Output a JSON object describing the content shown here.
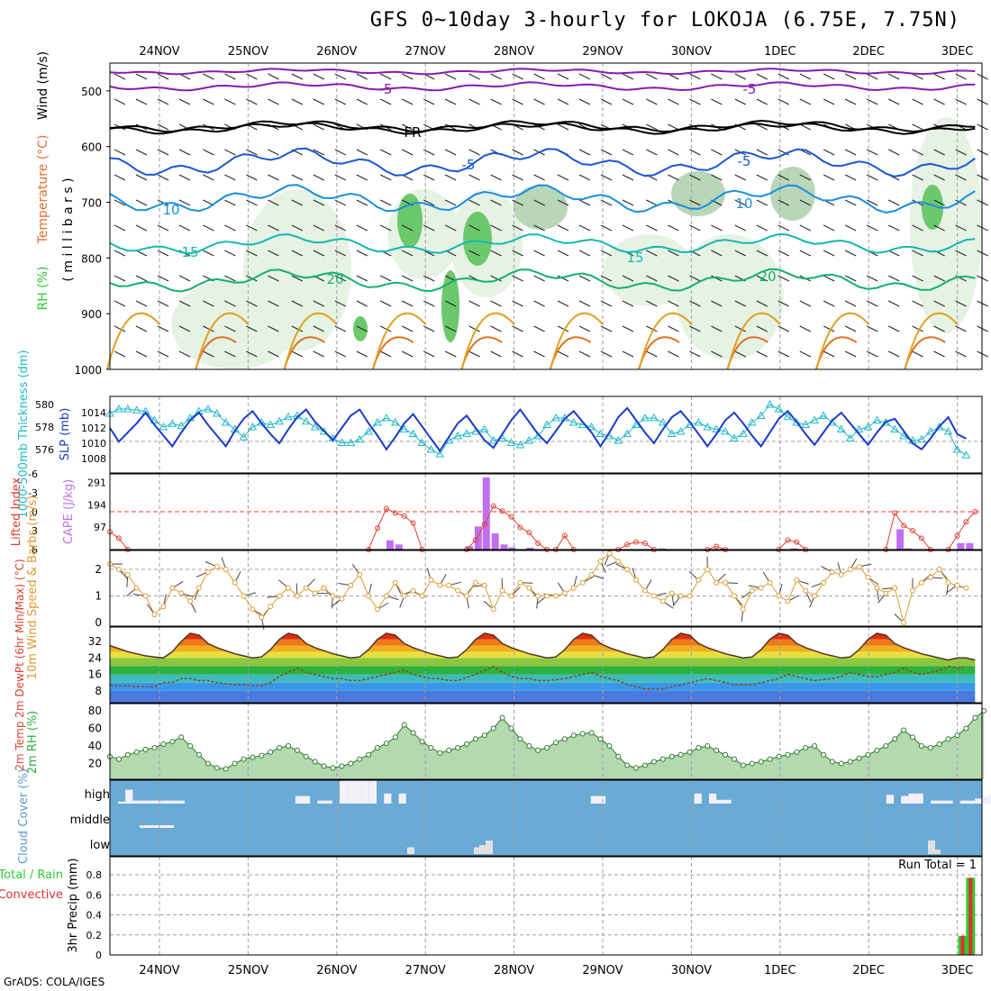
{
  "title": "GFS 0~10day 3-hourly for LOKOJA (6.75E, 7.75N)",
  "credit": "GrADS: COLA/IGES",
  "dates": [
    "24NOV",
    "25NOV",
    "26NOV",
    "27NOV",
    "28NOV",
    "29NOV",
    "30NOV",
    "1DEC",
    "2DEC",
    "3DEC"
  ],
  "colors": {
    "frame": "#000000",
    "grid": "#a0a0a0",
    "thickness": "#20b8c8",
    "slp": "#1a3cc8",
    "lifted": "#e04030",
    "cape": "#c070f0",
    "wind": "#e09a30",
    "rh": "#30b040",
    "cloud_bg": "#6aaad6",
    "cloud_box": "#f4f0f8",
    "precip_total": "#33c833",
    "precip_conv": "#e03030"
  },
  "panels": {
    "upper_air": {
      "ylabel_parts": [
        "RH (%)",
        "Temperature (°C)",
        "Wind (m/s)"
      ],
      "ylabel_unit": "( m i l l i b a r s )",
      "yticks": [
        "500",
        "600",
        "700",
        "800",
        "900",
        "1000"
      ],
      "isotherm_labels": [
        {
          "text": "-5",
          "color": "#8a1ab0"
        },
        {
          "text": "-5",
          "color": "#8a1ab0"
        },
        {
          "text": "FR",
          "color": "#000000"
        },
        {
          "text": "-5",
          "color": "#1a56d8"
        },
        {
          "text": "-5",
          "color": "#1a56d8"
        },
        {
          "text": "10",
          "color": "#1a8ee0"
        },
        {
          "text": "10",
          "color": "#1a8ee0"
        },
        {
          "text": "15",
          "color": "#14b8b0"
        },
        {
          "text": "15",
          "color": "#14b8b0"
        },
        {
          "text": "20",
          "color": "#14b070"
        },
        {
          "text": "20",
          "color": "#14b070"
        }
      ]
    },
    "thickness_slp": {
      "ylabel_left": "1000-500mb Thickness (dm)",
      "ylabel_right": "SLP (mb)",
      "yticks_left": [
        "580",
        "578",
        "576"
      ],
      "yticks_right": [
        "1014",
        "1012",
        "1010",
        "1008"
      ]
    },
    "cape_li": {
      "ylabel_left": "Lifted Index",
      "ylabel_right": "CAPE (J/kg)",
      "yticks_left": [
        "-6",
        "-3",
        "0",
        "3",
        "6"
      ],
      "yticks_right": [
        "291",
        "194",
        "97"
      ]
    },
    "wind10m": {
      "ylabel": "10m Wind Speed & Barbs (m/s)",
      "yticks": [
        "2",
        "1",
        "0"
      ]
    },
    "temp2m": {
      "ylabel": "2m Temp 2m DewPt (6hr Min/Max) (°C)",
      "yticks": [
        "32",
        "24",
        "16",
        "8"
      ]
    },
    "rh2m": {
      "ylabel": "2m RH (%)",
      "yticks": [
        "80",
        "60",
        "40",
        "20"
      ]
    },
    "cloud": {
      "ylabel": "Cloud Cover (%)",
      "levels": [
        "high",
        "middle",
        "low"
      ]
    },
    "precip": {
      "ylabel_left_parts": [
        "Total / Rain",
        "Convective"
      ],
      "ylabel": "3hr Precip (mm)",
      "yticks": [
        "0.8",
        "0.6",
        "0.4",
        "0.2",
        "0"
      ],
      "run_total": "Run Total = 1"
    }
  },
  "chart_data": [
    {
      "type": "line",
      "title": "1000-500mb Thickness / SLP",
      "series": [
        {
          "name": "1000-500mb Thickness (dm)",
          "values": [
            579.2,
            579.6,
            579.6,
            579.5,
            579.4,
            578.6,
            578.0,
            578.3,
            578.1,
            578.8,
            579.4,
            579.6,
            579.2,
            578.4,
            577.8,
            577.1,
            578.0,
            578.4,
            578.2,
            578.5,
            578.9,
            579.0,
            578.5,
            578.0,
            577.6,
            577.0,
            576.6,
            576.6,
            576.9,
            577.6,
            578.4,
            578.8,
            578.4,
            577.8,
            577.4,
            576.6,
            576.0,
            575.6,
            576.8,
            577.2,
            577.4,
            577.6,
            577.8,
            576.8,
            577.0,
            576.6,
            576.4,
            576.8,
            577.2,
            578.2,
            578.8,
            578.8,
            578.4,
            578.2,
            578.0,
            577.4,
            577.2,
            576.8,
            577.4,
            578.2,
            578.8,
            578.8,
            578.4,
            577.4,
            577.6,
            578.2,
            578.4,
            578.0,
            577.8,
            577.6,
            577.0,
            577.4,
            578.4,
            579.0,
            580.0,
            579.6,
            578.9,
            578.4,
            578.2,
            578.6,
            579.0,
            578.4,
            577.8,
            577.0,
            577.8,
            578.0,
            578.6,
            578.4,
            577.8,
            577.2,
            576.8,
            576.9,
            577.6,
            578.0,
            577.6,
            576.0,
            575.5
          ]
        },
        {
          "name": "SLP (mb)",
          "values": [
            1012.0,
            1010.2,
            1011.4,
            1012.6,
            1014.0,
            1012.4,
            1011.0,
            1009.6,
            1011.4,
            1013.0,
            1014.0,
            1012.4,
            1011.0,
            1009.6,
            1011.6,
            1013.2,
            1014.2,
            1012.6,
            1011.2,
            1010.0,
            1011.8,
            1013.4,
            1014.4,
            1012.8,
            1011.6,
            1010.4,
            1012.0,
            1013.6,
            1014.4,
            1012.6,
            1011.0,
            1009.2,
            1010.8,
            1012.6,
            1013.8,
            1012.2,
            1010.6,
            1009.0,
            1010.8,
            1012.6,
            1013.6,
            1012.0,
            1010.4,
            1009.4,
            1011.2,
            1013.0,
            1014.4,
            1012.8,
            1011.2,
            1010.0,
            1011.6,
            1013.2,
            1014.2,
            1012.8,
            1011.4,
            1009.6,
            1011.4,
            1013.4,
            1014.6,
            1013.0,
            1011.4,
            1010.0,
            1011.8,
            1013.4,
            1014.2,
            1012.8,
            1011.2,
            1009.6,
            1011.2,
            1013.0,
            1014.0,
            1012.6,
            1011.0,
            1009.6,
            1011.4,
            1013.2,
            1014.2,
            1012.8,
            1011.2,
            1009.8,
            1011.4,
            1013.0,
            1014.0,
            1012.6,
            1011.2,
            1009.8,
            1011.4,
            1012.8,
            1013.2,
            1011.6,
            1010.0,
            1009.2,
            1010.6,
            1012.2,
            1013.4,
            1011.2,
            1010.6
          ]
        }
      ]
    },
    {
      "type": "bar",
      "title": "CAPE / Lifted Index",
      "bars": [
        {
          "t": 31.4,
          "cape": 40
        },
        {
          "t": 32.4,
          "cape": 22
        },
        {
          "t": 40.3,
          "cape": 15
        },
        {
          "t": 41.3,
          "cape": 100
        },
        {
          "t": 42.2,
          "cape": 312
        },
        {
          "t": 43.2,
          "cape": 70
        },
        {
          "t": 44.2,
          "cape": 22
        },
        {
          "t": 45.1,
          "cape": 10
        },
        {
          "t": 47.1,
          "cape": 8
        },
        {
          "t": 61.9,
          "cape": 5
        },
        {
          "t": 68.8,
          "cape": 4
        },
        {
          "t": 76.7,
          "cape": 5
        },
        {
          "t": 88.6,
          "cape": 88
        },
        {
          "t": 89.5,
          "cape": 5
        },
        {
          "t": 95.4,
          "cape": 28
        },
        {
          "t": 96.4,
          "cape": 28
        }
      ],
      "lifted_index": [
        [
          0,
          3.2
        ],
        [
          1,
          4.2
        ],
        [
          2,
          6.2
        ],
        [
          29,
          6.2
        ],
        [
          30,
          2.6
        ],
        [
          31,
          -0.5
        ],
        [
          32,
          0.2
        ],
        [
          33,
          0.7
        ],
        [
          34,
          1.8
        ],
        [
          35,
          6.3
        ],
        [
          40,
          6.2
        ],
        [
          41,
          4.5
        ],
        [
          42,
          2.0
        ],
        [
          43,
          -0.9
        ],
        [
          44,
          -0.1
        ],
        [
          45,
          0.8
        ],
        [
          46,
          2.5
        ],
        [
          47,
          3.3
        ],
        [
          48,
          5.0
        ],
        [
          49,
          6.3
        ],
        [
          50,
          6.2
        ],
        [
          51,
          3.8
        ],
        [
          52,
          6.2
        ],
        [
          57,
          6.2
        ],
        [
          58,
          5.2
        ],
        [
          59,
          4.8
        ],
        [
          60,
          5.0
        ],
        [
          61,
          6.2
        ],
        [
          67,
          6.2
        ],
        [
          68,
          5.5
        ],
        [
          69,
          6.0
        ],
        [
          75,
          6.2
        ],
        [
          76,
          4.5
        ],
        [
          77,
          4.8
        ],
        [
          78,
          6.0
        ],
        [
          87,
          6.2
        ],
        [
          88,
          0.2
        ],
        [
          89,
          2.2
        ],
        [
          90,
          3.0
        ],
        [
          91,
          4.2
        ],
        [
          92,
          6.2
        ],
        [
          94,
          6.2
        ],
        [
          95,
          3.8
        ],
        [
          96,
          1.6
        ],
        [
          97,
          0.0
        ]
      ]
    },
    {
      "type": "line",
      "title": "10m Wind Speed",
      "values": [
        2.2,
        2.0,
        1.8,
        1.3,
        1.0,
        0.3,
        0.6,
        1.3,
        1.1,
        0.8,
        1.3,
        1.9,
        2.1,
        2.0,
        1.5,
        1.0,
        0.5,
        0.2,
        0.6,
        1.0,
        1.3,
        1.0,
        1.3,
        1.1,
        1.3,
        1.0,
        0.9,
        1.4,
        1.8,
        1.0,
        0.5,
        1.0,
        1.5,
        1.0,
        1.2,
        1.0,
        1.6,
        1.4,
        1.4,
        1.2,
        1.0,
        1.5,
        1.4,
        0.5,
        1.2,
        1.0,
        1.5,
        1.3,
        1.0,
        1.0,
        1.0,
        1.1,
        1.3,
        1.5,
        1.8,
        2.3,
        2.6,
        2.3,
        2.0,
        1.6,
        1.2,
        1.0,
        0.8,
        1.1,
        1.0,
        1.0,
        1.6,
        2.0,
        1.5,
        1.5,
        1.0,
        0.5,
        1.2,
        1.3,
        1.5,
        1.0,
        0.8,
        1.6,
        1.2,
        1.0,
        1.5,
        1.9,
        1.8,
        2.0,
        2.1,
        1.7,
        1.3,
        1.1,
        1.3,
        0.0,
        1.2,
        1.5,
        1.7,
        2.0,
        1.5,
        1.4,
        1.3
      ]
    },
    {
      "type": "area",
      "title": "2m Temp / 2m DewPt",
      "temp": [
        30,
        28.5,
        27,
        26,
        25,
        24.5,
        24,
        27,
        32,
        36,
        35,
        31,
        29,
        27.5,
        26,
        25,
        24,
        24.5,
        28,
        33,
        36,
        35,
        31,
        29,
        27.5,
        26,
        25,
        24,
        24.5,
        28,
        33,
        36,
        35,
        31,
        29,
        27.5,
        26,
        25,
        24,
        24.5,
        28,
        33,
        36,
        35,
        31,
        29,
        27.5,
        26,
        25,
        24,
        24.5,
        28,
        33,
        36,
        35,
        31,
        29,
        27.5,
        26,
        25,
        24,
        24.5,
        28,
        33,
        36,
        35,
        31,
        29,
        27.5,
        26,
        25,
        24,
        24.5,
        28,
        33,
        36,
        35,
        31,
        29,
        27.5,
        26,
        25,
        24,
        24.5,
        28,
        33,
        36,
        35,
        31,
        29,
        27.5,
        26,
        25,
        24,
        23,
        24,
        24,
        23
      ],
      "dewpoint": [
        11,
        10.5,
        10.5,
        10,
        10,
        10,
        12,
        12,
        14,
        14,
        13,
        13,
        12,
        11.5,
        11,
        11,
        10.5,
        10.5,
        12,
        15,
        17,
        19,
        17,
        16,
        15,
        14,
        14,
        13,
        13,
        14,
        15,
        16,
        17,
        18,
        16,
        15,
        14,
        14,
        13,
        13,
        14.5,
        16,
        18,
        20,
        17,
        15,
        14,
        14,
        13,
        13,
        13.5,
        14,
        15,
        16,
        17,
        15,
        14,
        13,
        11,
        10,
        9,
        9,
        9,
        10,
        11,
        12,
        13,
        14,
        13,
        12,
        11,
        11,
        11,
        12,
        13,
        14,
        16,
        15,
        14,
        13,
        13.5,
        14,
        15,
        17,
        16,
        15,
        15,
        16,
        17,
        19,
        17,
        16,
        17,
        18,
        20,
        19,
        20
      ]
    },
    {
      "type": "area",
      "title": "2m RH",
      "values": [
        28,
        25,
        30,
        33,
        36,
        38,
        42,
        45,
        50,
        40,
        30,
        20,
        15,
        14,
        20,
        25,
        27,
        29,
        33,
        38,
        40,
        35,
        28,
        22,
        17,
        15,
        17,
        20,
        25,
        30,
        38,
        43,
        50,
        64,
        55,
        45,
        38,
        32,
        35,
        38,
        42,
        48,
        52,
        60,
        72,
        60,
        48,
        40,
        35,
        38,
        44,
        48,
        52,
        54,
        55,
        48,
        40,
        28,
        18,
        15,
        18,
        22,
        25,
        28,
        30,
        33,
        38,
        40,
        35,
        30,
        25,
        18,
        20,
        22,
        25,
        28,
        30,
        33,
        38,
        40,
        30,
        22,
        20,
        22,
        26,
        30,
        35,
        40,
        48,
        58,
        50,
        40,
        38,
        42,
        48,
        52,
        60,
        72,
        80
      ]
    },
    {
      "type": "bar",
      "title": "Cloud Cover",
      "series": [
        {
          "name": "high",
          "values": [
            0.08,
            0.55,
            0.12,
            0.12,
            0.12,
            0.12,
            0.12,
            0.12,
            0.12,
            0,
            0,
            0,
            0,
            0,
            0,
            0,
            0,
            0,
            0,
            0,
            0,
            0,
            0,
            0,
            0.3,
            0.3,
            0,
            0.12,
            0.12,
            0,
            0.9,
            0.9,
            0.9,
            0.9,
            0.9,
            0,
            0.4,
            0,
            0.4,
            0,
            0,
            0,
            0,
            0,
            0,
            0,
            0,
            0,
            0,
            0,
            0,
            0,
            0,
            0,
            0,
            0,
            0,
            0,
            0,
            0,
            0,
            0,
            0,
            0,
            0.3,
            0.3,
            0,
            0,
            0,
            0,
            0,
            0,
            0,
            0,
            0,
            0,
            0,
            0,
            0.4,
            0,
            0.4,
            0.15,
            0.15,
            0,
            0,
            0,
            0,
            0,
            0,
            0,
            0,
            0,
            0,
            0,
            0,
            0,
            0,
            0,
            0,
            0,
            0,
            0,
            0,
            0,
            0.35,
            0,
            0.3,
            0.4,
            0.4,
            0,
            0.12,
            0.12,
            0.12,
            0,
            0.12,
            0.12,
            0.2,
            0.3,
            0.4,
            0
          ]
        },
        {
          "name": "low",
          "values": [
            0.3,
            0.3,
            0.4,
            0.6,
            0.6,
            0.2
          ]
        }
      ]
    },
    {
      "type": "bar",
      "title": "3hr Precip",
      "series": [
        {
          "name": "Total / Rain",
          "x": [
            95.6,
            96.5
          ],
          "values": [
            0.19,
            0.77
          ]
        },
        {
          "name": "Convective",
          "x": [
            95.6,
            96.5
          ],
          "values": [
            0.19,
            0.77
          ]
        }
      ],
      "ylim": [
        0,
        0.9
      ]
    }
  ]
}
